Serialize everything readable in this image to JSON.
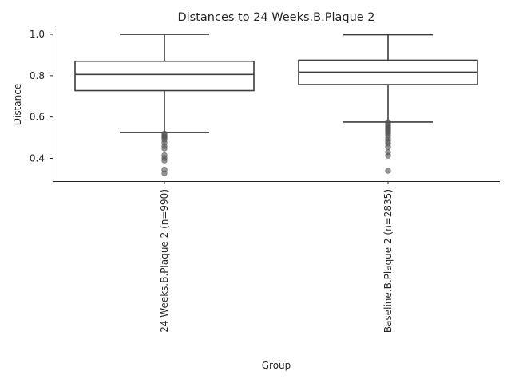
{
  "chart_data": {
    "type": "box",
    "title": "Distances to 24 Weeks.B.Plaque 2",
    "xlabel": "Group",
    "ylabel": "Distance",
    "ylim": [
      0.29,
      1.035
    ],
    "yticks": [
      0.4,
      0.6,
      0.8,
      1.0
    ],
    "ytick_labels": [
      "0.4",
      "0.6",
      "0.8",
      "1.0"
    ],
    "grid": false,
    "groups": [
      {
        "label": "24 Weeks.B.Plaque 2 (n=990)",
        "whislo": 0.525,
        "q1": 0.728,
        "median": 0.806,
        "q3": 0.87,
        "whishi": 1.0,
        "fliers": [
          0.52,
          0.512,
          0.505,
          0.5,
          0.49,
          0.476,
          0.46,
          0.448,
          0.415,
          0.402,
          0.39,
          0.345,
          0.328
        ]
      },
      {
        "label": "Baseline.B.Plaque 2 (n=2835)",
        "whislo": 0.576,
        "q1": 0.757,
        "median": 0.817,
        "q3": 0.875,
        "whishi": 0.998,
        "fliers": [
          0.575,
          0.568,
          0.562,
          0.555,
          0.548,
          0.542,
          0.535,
          0.528,
          0.52,
          0.51,
          0.497,
          0.483,
          0.472,
          0.455,
          0.43,
          0.413,
          0.34
        ]
      }
    ]
  }
}
